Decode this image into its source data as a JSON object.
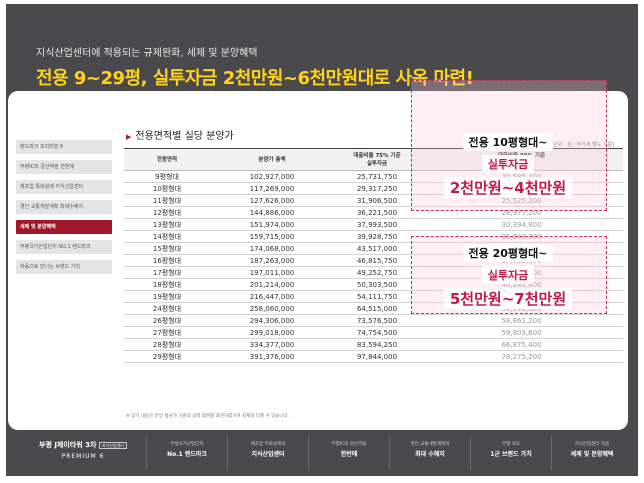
{
  "header": {
    "subtitle": "지식산업센터에 적용되는 규제완화, 세제 및 분양혜택",
    "headline": "전용 9~29평, 실투자금 2천만원~6천만원대로 사옥 마련!"
  },
  "sidebar": {
    "items": [
      {
        "label": "랜드마크 프리미엄 6",
        "active": false
      },
      {
        "label": "부평IC와 갈산역을 한번에",
        "active": false
      },
      {
        "label": "제조업 특화설계 지식산업센터",
        "active": false
      },
      {
        "label": "경인 교통개발계획 최대수혜지",
        "active": false
      },
      {
        "label": "세제 및 분양혜택",
        "active": true
      },
      {
        "label": "부평국가산업단지 NO.1 랜드마크",
        "active": false
      },
      {
        "label": "처음으로 만나는 브랜드 가치",
        "active": false
      }
    ]
  },
  "section": {
    "title": "전용면적별 실당 분양가",
    "unit": "[단위 : 원 / 부가세 별도 기준]"
  },
  "table": {
    "headers": [
      "전용면적",
      "분양가 총액",
      "대출비율 75% 기준\n실투자금",
      "대출비율 80% 기준\n실투자금"
    ],
    "rows": [
      [
        "9평형대",
        "102,927,000",
        "25,731,750",
        "20,585,400"
      ],
      [
        "10평형대",
        "117,269,000",
        "29,317,250",
        "23,453,800"
      ],
      [
        "11평형대",
        "127,626,000",
        "31,906,500",
        "25,525,200"
      ],
      [
        "12평형대",
        "144,886,000",
        "36,221,500",
        "28,977,200"
      ],
      [
        "13평형대",
        "151,974,000",
        "37,993,500",
        "30,394,800"
      ],
      [
        "14평형대",
        "159,715,000",
        "39,928,750",
        "31,943,000"
      ],
      [
        "15평형대",
        "174,068,000",
        "43,517,000",
        "34,813,600"
      ],
      [
        "16평형대",
        "187,263,000",
        "46,815,750",
        "37,452,600"
      ],
      [
        "17평형대",
        "197,011,000",
        "49,252,750",
        "39,402,200"
      ],
      [
        "18평형대",
        "201,214,000",
        "50,303,500",
        "40,242,800"
      ],
      [
        "19평형대",
        "216,447,000",
        "54,111,750",
        "43,289,400"
      ],
      [
        "24평형대",
        "258,060,000",
        "64,515,000",
        "51,612,000"
      ],
      [
        "26평형대",
        "294,306,000",
        "73,576,500",
        "58,861,200"
      ],
      [
        "27평형대",
        "299,018,000",
        "74,754,500",
        "59,803,600"
      ],
      [
        "28평형대",
        "334,377,000",
        "83,594,250",
        "66,875,400"
      ],
      [
        "29평형대",
        "391,376,000",
        "97,844,000",
        "78,275,200"
      ]
    ]
  },
  "note": "※ 상기 내용은 분양 평균가 기준의 금액 범위를 표현하였으며 실제와 다를 수 있습니다.",
  "callouts": [
    {
      "line1": "전용 10평형대~",
      "line2": "실투자금",
      "line3": "2천만원~4천만원"
    },
    {
      "line1": "전용 20평형대~",
      "line2": "실투자금",
      "line3": "5천만원~7천만원"
    }
  ],
  "footer": {
    "brand_prefix": "부평",
    "brand_name": "J제이타워 3차",
    "brand_badge": "지식산업센터",
    "brand_sub": "PREMIUM 6",
    "items": [
      {
        "small": "부평국가산업단지",
        "big": "No.1 랜드마크"
      },
      {
        "small": "제조업 특화설계의",
        "big": "지식산업센터"
      },
      {
        "small": "부평IC와 갈산역을",
        "big": "한번에"
      },
      {
        "small": "경인 교통개발계획의",
        "big": "최대 수혜지"
      },
      {
        "small": "부평 최초",
        "big": "1군 브랜드 가치"
      },
      {
        "small": "지식산업센터 적용",
        "big": "세제 및 분양혜택"
      }
    ]
  },
  "colors": {
    "background": "#4a4a4d",
    "headline": "#ffd21e",
    "accent": "#a0182a",
    "highlight": "#c01a4a"
  }
}
